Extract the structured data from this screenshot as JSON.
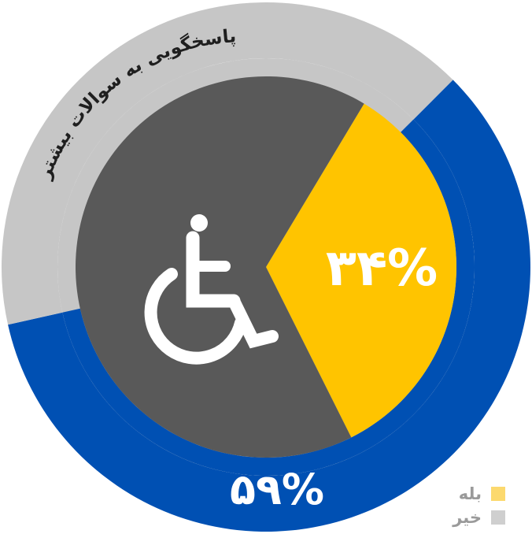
{
  "chart_data": {
    "type": "pie",
    "outer_ring": {
      "caption": "پاسخگویی به سوالات بیشتر",
      "slices": [
        {
          "name": "بله",
          "value": 59,
          "label": "۵۹%",
          "color": "#0050b3"
        },
        {
          "name": "خیر",
          "value": 41,
          "label": "",
          "color": "#c6c6c6"
        }
      ]
    },
    "inner_pie": {
      "slices": [
        {
          "name": "بله",
          "value": 34,
          "label": "۳۴%",
          "color": "#ffc400"
        },
        {
          "name": "خیر",
          "value": 66,
          "label": "",
          "color": "#595959"
        }
      ],
      "center_icon": "wheelchair-icon"
    },
    "legend": {
      "position": "bottom-right",
      "entries": [
        {
          "label": "بله",
          "color": "#fcd96e"
        },
        {
          "label": "خیر",
          "color": "#cfcfcf"
        }
      ]
    }
  }
}
